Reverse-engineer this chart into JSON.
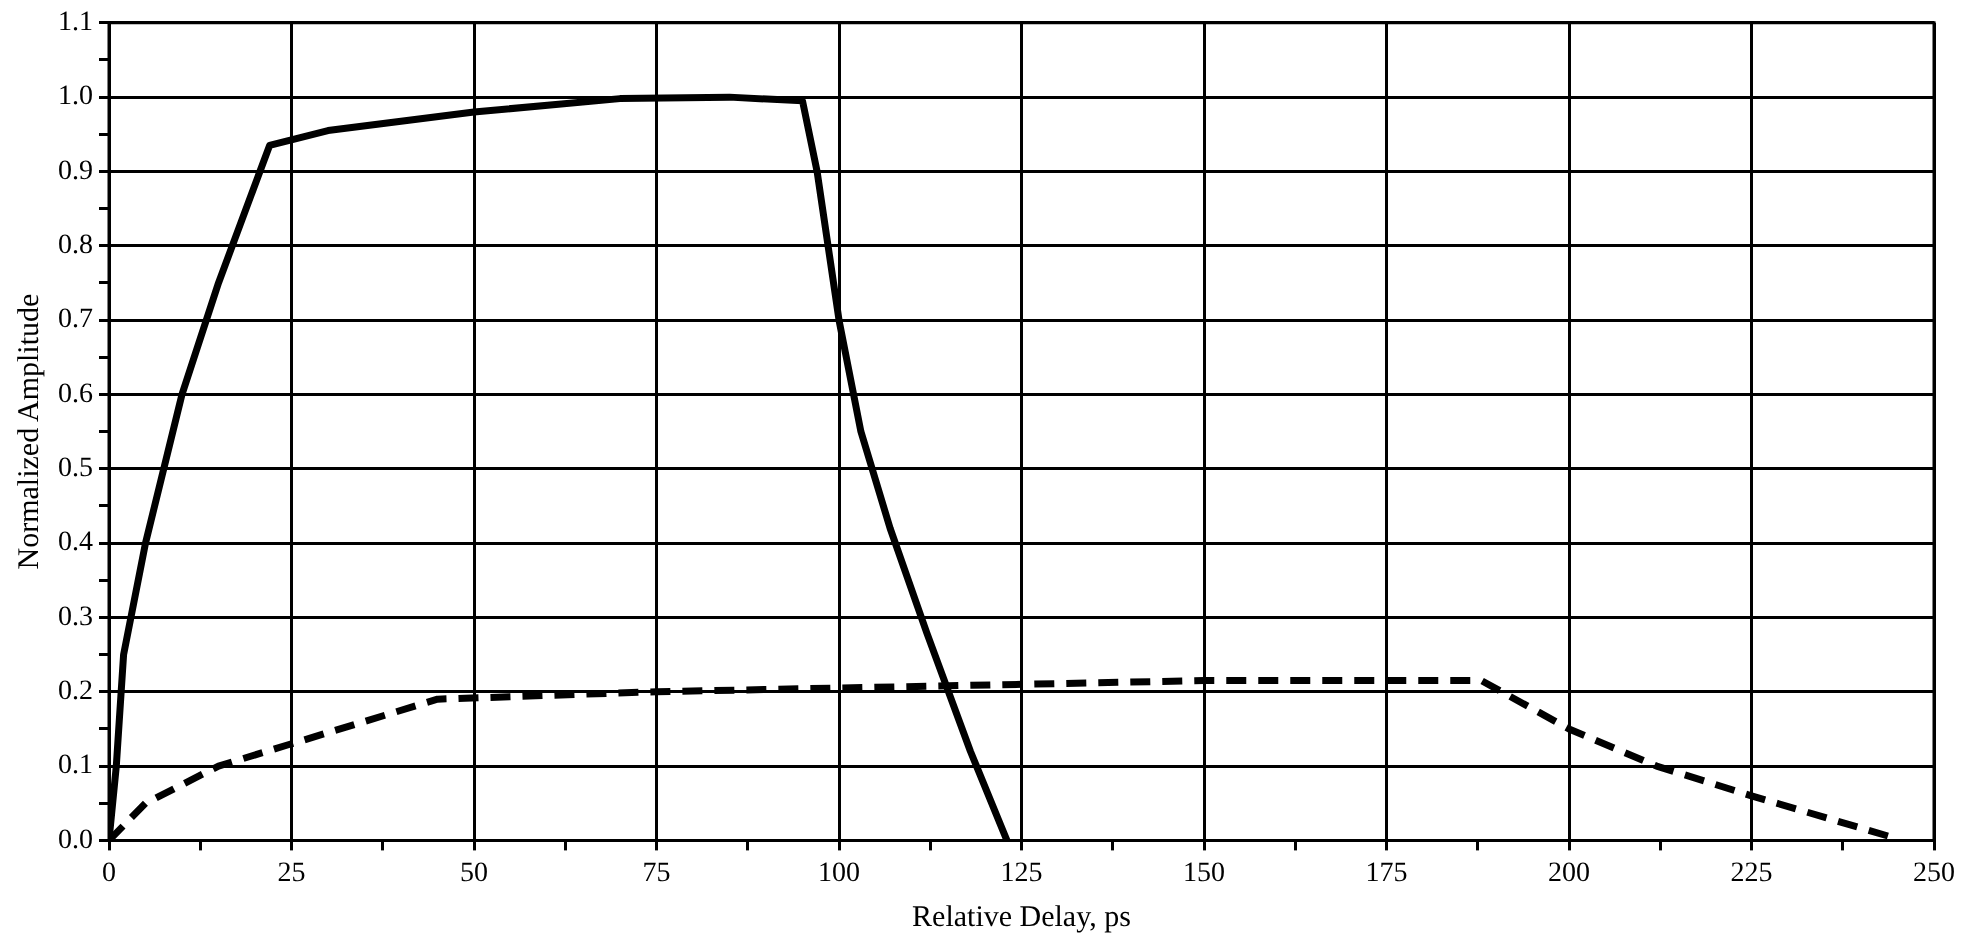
{
  "chart_data": {
    "type": "line",
    "xlabel": "Relative Delay, ps",
    "ylabel": "Normalized Amplitude",
    "xlim": [
      0,
      250
    ],
    "ylim": [
      0,
      1.1
    ],
    "xticks": [
      0,
      {
        "value": 12.5,
        "label": null
      },
      25,
      {
        "value": 37.5,
        "label": null
      },
      50,
      {
        "value": 62.5,
        "label": null
      },
      75,
      {
        "value": 87.5,
        "label": null
      },
      100,
      {
        "value": 112.5,
        "label": null
      },
      125,
      {
        "value": 137.5,
        "label": null
      },
      150,
      {
        "value": 162.5,
        "label": null
      },
      175,
      {
        "value": 187.5,
        "label": null
      },
      200,
      {
        "value": 212.5,
        "label": null
      },
      225,
      {
        "value": 237.5,
        "label": null
      },
      250
    ],
    "yticks": [
      {
        "value": 0,
        "label": "0.0"
      },
      {
        "value": 0.05,
        "label": null
      },
      {
        "value": 0.1,
        "label": "0.1"
      },
      {
        "value": 0.15,
        "label": null
      },
      {
        "value": 0.2,
        "label": "0.2"
      },
      {
        "value": 0.25,
        "label": null
      },
      {
        "value": 0.3,
        "label": "0.3"
      },
      {
        "value": 0.35,
        "label": null
      },
      {
        "value": 0.4,
        "label": "0.4"
      },
      {
        "value": 0.45,
        "label": null
      },
      {
        "value": 0.5,
        "label": "0.5"
      },
      {
        "value": 0.55,
        "label": null
      },
      {
        "value": 0.6,
        "label": "0.6"
      },
      {
        "value": 0.65,
        "label": null
      },
      {
        "value": 0.7,
        "label": "0.7"
      },
      {
        "value": 0.75,
        "label": null
      },
      {
        "value": 0.8,
        "label": "0.8"
      },
      {
        "value": 0.85,
        "label": null
      },
      {
        "value": 0.9,
        "label": "0.9"
      },
      {
        "value": 0.95,
        "label": null
      },
      {
        "value": 1.0,
        "label": "1.0"
      },
      {
        "value": 1.05,
        "label": null
      },
      {
        "value": 1.1,
        "label": "1.1"
      }
    ],
    "grid": true,
    "legend": false,
    "marker": "none",
    "series": [
      {
        "color": "#000000",
        "line_style": "solid",
        "x": [
          0,
          1,
          2,
          5,
          10,
          15,
          22,
          30,
          50,
          70,
          85,
          95,
          97,
          100,
          103,
          107,
          112,
          118,
          123
        ],
        "values": [
          0,
          0.1,
          0.25,
          0.4,
          0.6,
          0.75,
          0.935,
          0.955,
          0.98,
          0.998,
          1.0,
          0.995,
          0.9,
          0.7,
          0.55,
          0.42,
          0.28,
          0.12,
          0
        ]
      },
      {
        "color": "#000000",
        "line_style": "dashed",
        "x": [
          0,
          5,
          15,
          25,
          35,
          45,
          75,
          100,
          150,
          188,
          200,
          212,
          225,
          244
        ],
        "values": [
          0,
          0.05,
          0.1,
          0.13,
          0.16,
          0.19,
          0.2,
          0.205,
          0.215,
          0.215,
          0.15,
          0.1,
          0.06,
          0.005
        ]
      }
    ]
  }
}
